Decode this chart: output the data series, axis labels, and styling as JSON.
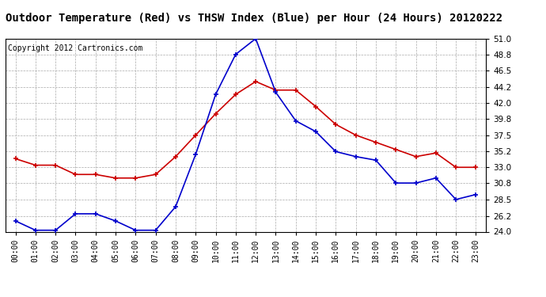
{
  "title": "Outdoor Temperature (Red) vs THSW Index (Blue) per Hour (24 Hours) 20120222",
  "copyright": "Copyright 2012 Cartronics.com",
  "hours": [
    "00:00",
    "01:00",
    "02:00",
    "03:00",
    "04:00",
    "05:00",
    "06:00",
    "07:00",
    "08:00",
    "09:00",
    "10:00",
    "11:00",
    "12:00",
    "13:00",
    "14:00",
    "15:00",
    "16:00",
    "17:00",
    "18:00",
    "19:00",
    "20:00",
    "21:00",
    "22:00",
    "23:00"
  ],
  "red_temp": [
    34.2,
    33.3,
    33.3,
    32.0,
    32.0,
    31.5,
    31.5,
    32.0,
    34.5,
    37.5,
    40.5,
    43.2,
    45.0,
    43.8,
    43.8,
    41.5,
    39.0,
    37.5,
    36.5,
    35.5,
    34.5,
    35.0,
    33.0,
    33.0
  ],
  "blue_thsw": [
    25.5,
    24.2,
    24.2,
    26.5,
    26.5,
    25.5,
    24.2,
    24.2,
    27.5,
    34.8,
    43.2,
    48.8,
    51.0,
    43.5,
    39.5,
    38.0,
    35.2,
    34.5,
    34.0,
    30.8,
    30.8,
    31.5,
    28.5,
    29.2
  ],
  "ylim": [
    24.0,
    51.0
  ],
  "yticks": [
    24.0,
    26.2,
    28.5,
    30.8,
    33.0,
    35.2,
    37.5,
    39.8,
    42.0,
    44.2,
    46.5,
    48.8,
    51.0
  ],
  "red_color": "#cc0000",
  "blue_color": "#0000cc",
  "grid_color": "#aaaaaa",
  "bg_color": "#ffffff",
  "title_fontsize": 10,
  "copyright_fontsize": 7
}
